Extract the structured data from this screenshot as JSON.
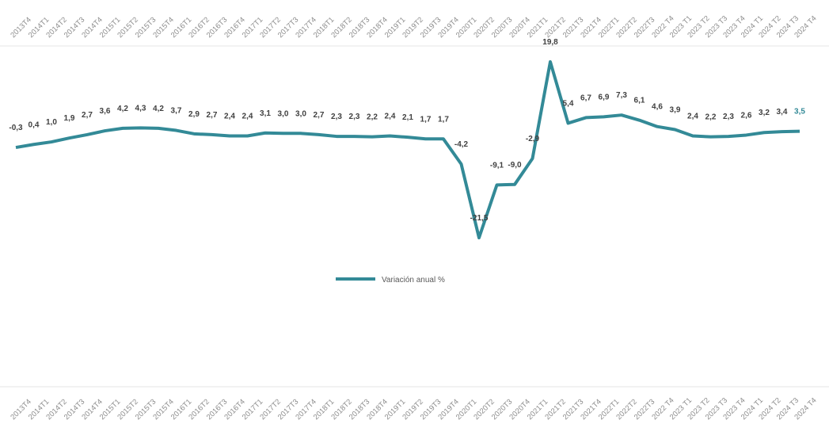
{
  "chart_data": {
    "type": "line",
    "categories": [
      "2013T4",
      "2014T1",
      "2014T2",
      "2014T3",
      "2014T4",
      "2015T1",
      "2015T2",
      "2015T3",
      "2015T4",
      "2016T1",
      "2016T2",
      "2016T3",
      "2016T4",
      "2017T1",
      "2017T2",
      "2017T3",
      "2017T4",
      "2018T1",
      "2018T2",
      "2018T3",
      "2018T4",
      "2019T1",
      "2019T2",
      "2019T3",
      "2019T4",
      "2020T1",
      "2020T2",
      "2020T3",
      "2020T4",
      "2021T1",
      "2021T2",
      "2021T3",
      "2021T4",
      "2022T1",
      "2022T2",
      "2022T3",
      "2022 T4",
      "2023 T1",
      "2023 T2",
      "2023 T3",
      "2023 T4",
      "2024 T1",
      "2024 T2",
      "2024 T3",
      "2024 T4"
    ],
    "series": [
      {
        "name": "Variación anual %",
        "color": "#338a97",
        "values": [
          -0.3,
          0.4,
          1.0,
          1.9,
          2.7,
          3.6,
          4.2,
          4.3,
          4.2,
          3.7,
          2.9,
          2.7,
          2.4,
          2.4,
          3.1,
          3.0,
          3.0,
          2.7,
          2.3,
          2.3,
          2.2,
          2.4,
          2.1,
          1.7,
          1.7,
          -4.2,
          -21.5,
          -9.1,
          -9.0,
          -2.9,
          19.8,
          5.4,
          6.7,
          6.9,
          7.3,
          6.1,
          4.6,
          3.9,
          2.4,
          2.2,
          2.3,
          2.6,
          3.2,
          3.4,
          3.5
        ],
        "value_labels": [
          "-0,3",
          "0,4",
          "1,0",
          "1,9",
          "2,7",
          "3,6",
          "4,2",
          "4,3",
          "4,2",
          "3,7",
          "2,9",
          "2,7",
          "2,4",
          "2,4",
          "3,1",
          "3,0",
          "3,0",
          "2,7",
          "2,3",
          "2,3",
          "2,2",
          "2,4",
          "2,1",
          "1,7",
          "1,7",
          "-4,2",
          "-21,5",
          "-9,1",
          "-9,0",
          "-2,9",
          "19,8",
          "5,4",
          "6,7",
          "6,9",
          "7,3",
          "6,1",
          "4,6",
          "3,9",
          "2,4",
          "2,2",
          "2,3",
          "2,6",
          "3,2",
          "3,4",
          "3,5"
        ],
        "last_label_color": "#338a97"
      }
    ],
    "legend": "center"
  }
}
